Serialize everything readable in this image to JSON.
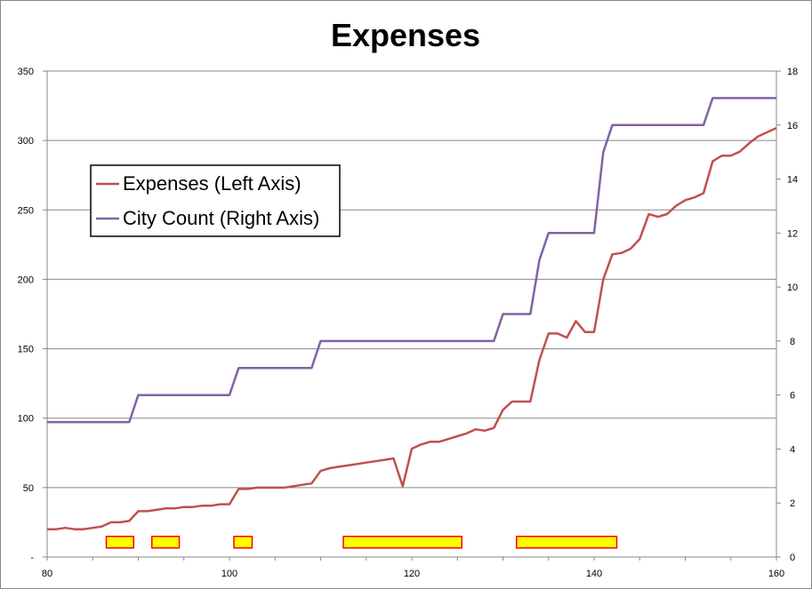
{
  "chart_data": {
    "type": "line",
    "title": "Expenses",
    "x_axis": {
      "range": [
        80,
        160
      ],
      "ticks": [
        80,
        100,
        120,
        140,
        160
      ]
    },
    "y_left": {
      "range": [
        0,
        350
      ],
      "ticks": [
        0,
        50,
        100,
        150,
        200,
        250,
        300,
        350
      ],
      "tick_labels": [
        "-",
        "50",
        "100",
        "150",
        "200",
        "250",
        "300",
        "350"
      ]
    },
    "y_right": {
      "range": [
        0,
        18
      ],
      "ticks": [
        0,
        2,
        4,
        6,
        8,
        10,
        12,
        14,
        16,
        18
      ],
      "tick_labels": [
        "0",
        "2",
        "4",
        "6",
        "8",
        "10",
        "12",
        "14",
        "16",
        "18"
      ]
    },
    "grid": "horizontal",
    "legend": {
      "placement": "upper-left",
      "items": [
        "Expenses (Left Axis)",
        "City Count (Right Axis)"
      ]
    },
    "series": [
      {
        "name": "Expenses (Left Axis)",
        "axis": "left",
        "color": "#c0504d",
        "points": [
          [
            80,
            20
          ],
          [
            81,
            20
          ],
          [
            82,
            21
          ],
          [
            83,
            20
          ],
          [
            84,
            20
          ],
          [
            85,
            21
          ],
          [
            86,
            22
          ],
          [
            87,
            25
          ],
          [
            88,
            25
          ],
          [
            89,
            26
          ],
          [
            90,
            33
          ],
          [
            91,
            33
          ],
          [
            92,
            34
          ],
          [
            93,
            35
          ],
          [
            94,
            35
          ],
          [
            95,
            36
          ],
          [
            96,
            36
          ],
          [
            97,
            37
          ],
          [
            98,
            37
          ],
          [
            99,
            38
          ],
          [
            100,
            38
          ],
          [
            101,
            49
          ],
          [
            102,
            49
          ],
          [
            103,
            50
          ],
          [
            104,
            50
          ],
          [
            105,
            50
          ],
          [
            106,
            50
          ],
          [
            107,
            51
          ],
          [
            108,
            52
          ],
          [
            109,
            53
          ],
          [
            110,
            62
          ],
          [
            111,
            64
          ],
          [
            112,
            65
          ],
          [
            113,
            66
          ],
          [
            114,
            67
          ],
          [
            115,
            68
          ],
          [
            116,
            69
          ],
          [
            117,
            70
          ],
          [
            118,
            71
          ],
          [
            119,
            51
          ],
          [
            120,
            78
          ],
          [
            121,
            81
          ],
          [
            122,
            83
          ],
          [
            123,
            83
          ],
          [
            124,
            85
          ],
          [
            125,
            87
          ],
          [
            126,
            89
          ],
          [
            127,
            92
          ],
          [
            128,
            91
          ],
          [
            129,
            93
          ],
          [
            130,
            106
          ],
          [
            131,
            112
          ],
          [
            132,
            112
          ],
          [
            133,
            112
          ],
          [
            134,
            142
          ],
          [
            135,
            161
          ],
          [
            136,
            161
          ],
          [
            137,
            158
          ],
          [
            138,
            170
          ],
          [
            139,
            162
          ],
          [
            140,
            162
          ],
          [
            141,
            200
          ],
          [
            142,
            218
          ],
          [
            143,
            219
          ],
          [
            144,
            222
          ],
          [
            145,
            229
          ],
          [
            146,
            247
          ],
          [
            147,
            245
          ],
          [
            148,
            247
          ],
          [
            149,
            253
          ],
          [
            150,
            257
          ],
          [
            151,
            259
          ],
          [
            152,
            262
          ],
          [
            153,
            285
          ],
          [
            154,
            289
          ],
          [
            155,
            289
          ],
          [
            156,
            292
          ],
          [
            157,
            298
          ],
          [
            158,
            303
          ],
          [
            159,
            306
          ],
          [
            160,
            309
          ]
        ]
      },
      {
        "name": "City Count (Right Axis)",
        "axis": "right",
        "color": "#8064a2",
        "points": [
          [
            80,
            5
          ],
          [
            89,
            5
          ],
          [
            90,
            6
          ],
          [
            100,
            6
          ],
          [
            101,
            7
          ],
          [
            109,
            7
          ],
          [
            110,
            8
          ],
          [
            129,
            8
          ],
          [
            130,
            9
          ],
          [
            133,
            9
          ],
          [
            134,
            11
          ],
          [
            135,
            12
          ],
          [
            140,
            12
          ],
          [
            141,
            15
          ],
          [
            142,
            16
          ],
          [
            152,
            16
          ],
          [
            153,
            17
          ],
          [
            160,
            17
          ]
        ]
      }
    ],
    "highlight_bars": {
      "color": "#ffff00",
      "border": "#ff0000",
      "level_right_axis": 0.55,
      "ranges": [
        [
          86,
          89
        ],
        [
          91,
          94
        ],
        [
          100,
          102
        ],
        [
          112,
          125
        ],
        [
          131,
          142
        ]
      ]
    }
  }
}
